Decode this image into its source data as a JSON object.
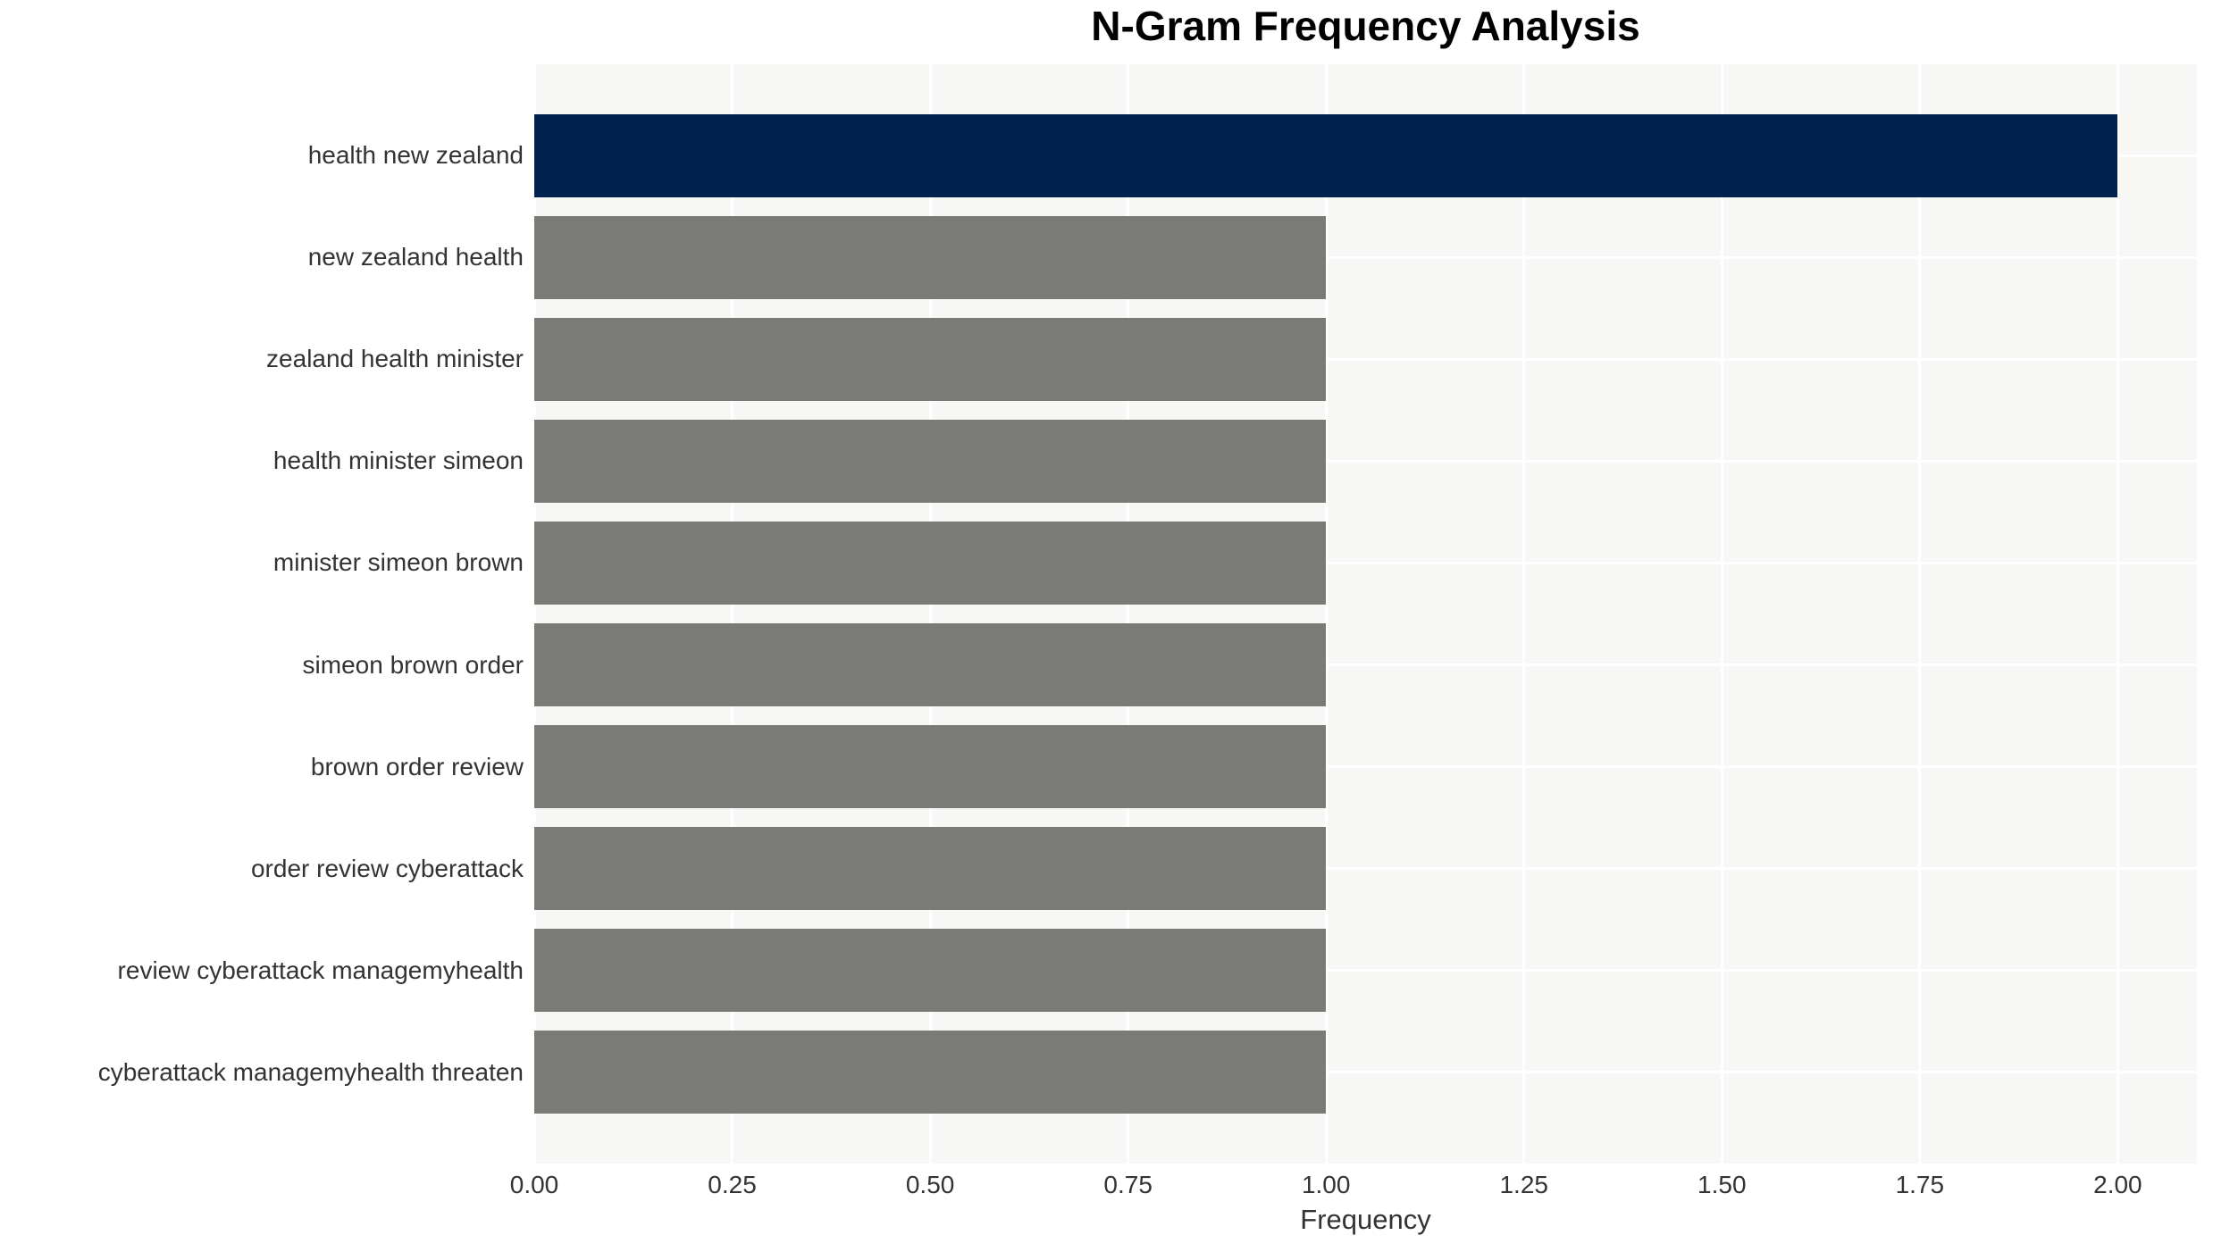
{
  "chart_data": {
    "type": "bar",
    "orientation": "horizontal",
    "title": "N-Gram Frequency Analysis",
    "xlabel": "Frequency",
    "ylabel": "",
    "categories": [
      "health new zealand",
      "new zealand health",
      "zealand health minister",
      "health minister simeon",
      "minister simeon brown",
      "simeon brown order",
      "brown order review",
      "order review cyberattack",
      "review cyberattack managemyhealth",
      "cyberattack managemyhealth threaten"
    ],
    "values": [
      2.0,
      1.0,
      1.0,
      1.0,
      1.0,
      1.0,
      1.0,
      1.0,
      1.0,
      1.0
    ],
    "bar_colors": [
      "#01224e",
      "#7a7a77",
      "#7a7a77",
      "#7a7a77",
      "#7a7a77",
      "#7a7a77",
      "#7a7a77",
      "#7a7a77",
      "#7a7a77",
      "#7a7a77"
    ],
    "xlim": [
      0,
      2.1
    ],
    "xticks": [
      0,
      0.25,
      0.5,
      0.75,
      1.0,
      1.25,
      1.5,
      1.75,
      2.0
    ],
    "xtick_labels": [
      "0.00",
      "0.25",
      "0.50",
      "0.75",
      "1.00",
      "1.25",
      "1.50",
      "1.75",
      "2.00"
    ],
    "grid": "on",
    "legend": "none",
    "colors": {
      "highlight_bar": "#01224e",
      "default_bar": "#7a7a77",
      "plot_background": "#f7f7f6",
      "gridline": "#ffffff",
      "tick_text": "#333333",
      "title_text": "#000000"
    }
  }
}
